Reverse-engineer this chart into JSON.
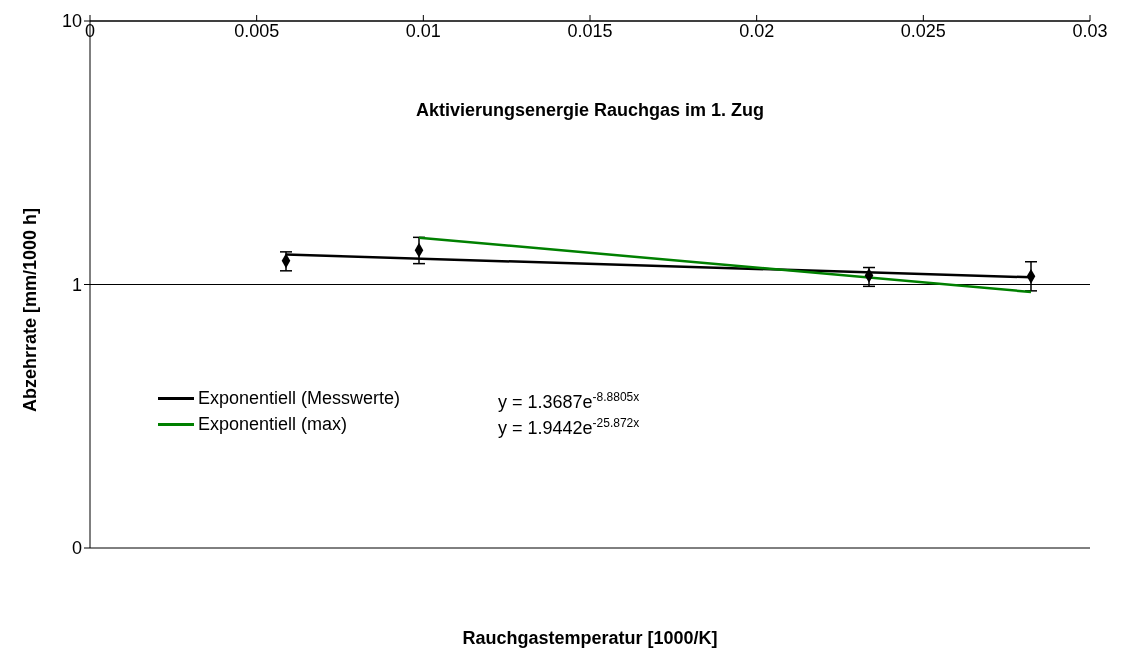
{
  "chart_data": {
    "type": "scatter",
    "title": "Aktivierungsenergie Rauchgas im 1. Zug",
    "xlabel": "Rauchgastemperatur [1000/K]",
    "ylabel": "Abzehrrate [mm/1000 h]",
    "log": "y",
    "grid": "y",
    "legend": "left",
    "marker": "diamond",
    "xlim": [
      0,
      0.03
    ],
    "xticks": [
      0,
      0.005,
      0.01,
      0.015,
      0.02,
      0.025,
      0.03
    ],
    "ylim": [
      0.1,
      10
    ],
    "yticks": [
      {
        "value": 0.1,
        "label": "0"
      },
      1,
      10
    ],
    "annotations": [
      "y = 1.3687e$^{-8.8805x}$",
      "y = 1.9442e$^{-25.872x}$"
    ],
    "series": [
      {
        "color": "#000000",
        "x": [
          0.00588,
          0.00987,
          0.02337,
          0.02823
        ],
        "values": [
          1.23,
          1.35,
          1.083,
          1.074
        ],
        "errors": [
          [
            1.127,
            1.33
          ],
          [
            1.2,
            1.51
          ],
          [
            0.984,
            1.16
          ],
          [
            0.946,
            1.22
          ]
        ]
      },
      {
        "type": "line",
        "marker": "none",
        "name": "Exponentiell (Messwerte)",
        "color": "#000000",
        "x": [
          0.00588,
          0.02823
        ],
        "values": [
          1.299,
          1.065
        ]
      },
      {
        "type": "line",
        "marker": "none",
        "name": "Exponentiell (max)",
        "color": "#008000",
        "x": [
          0.00987,
          0.02823
        ],
        "values": [
          1.506,
          0.9366
        ]
      }
    ]
  }
}
